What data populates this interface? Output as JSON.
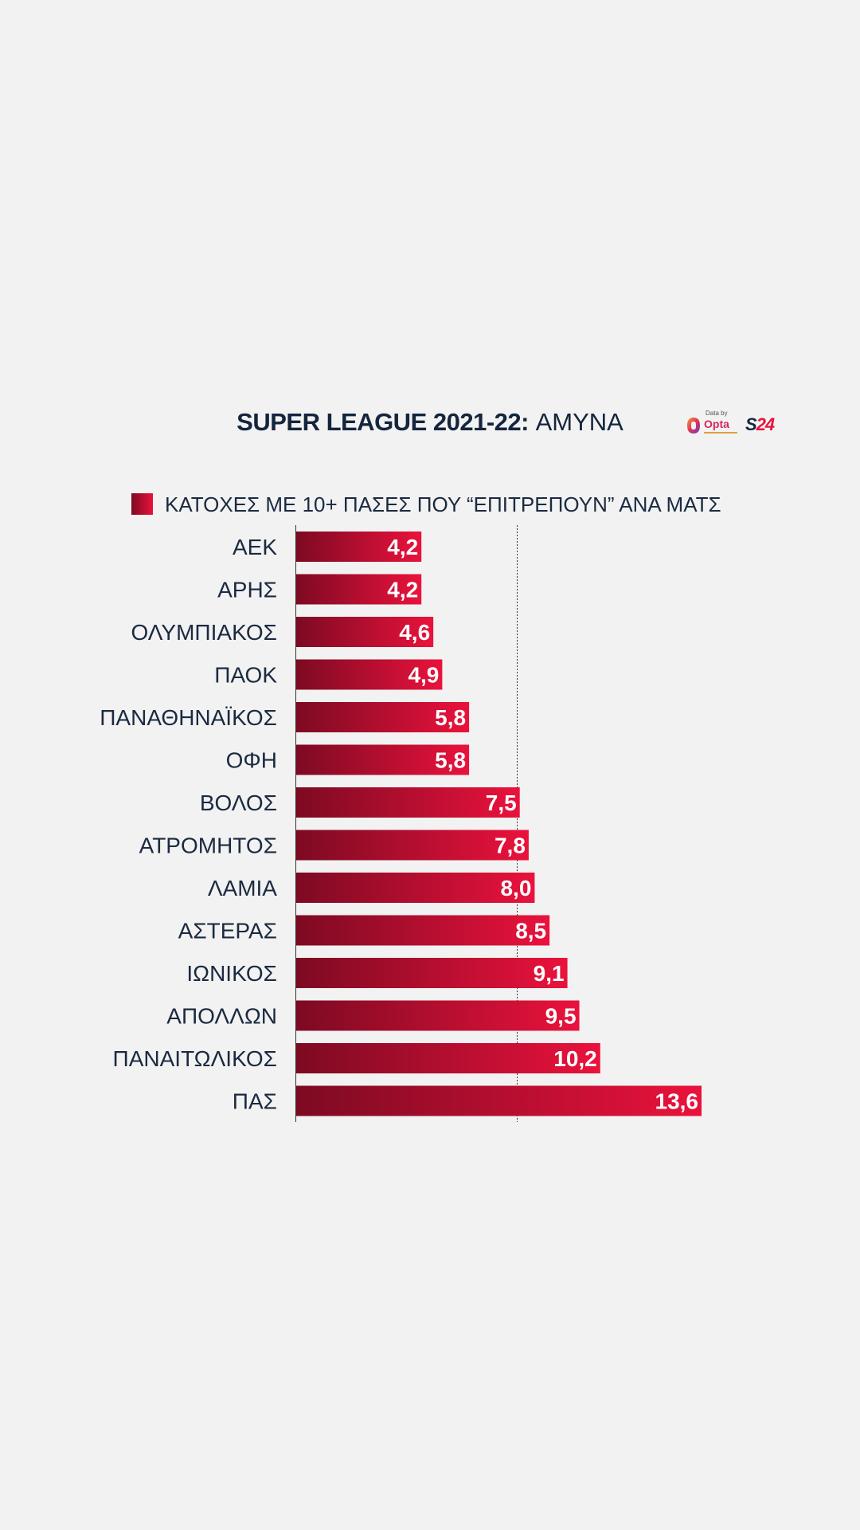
{
  "header": {
    "title_bold": "SUPER LEAGUE 2021-22:",
    "title_rest": "ΑΜΥΝΑ",
    "data_by": "Data by",
    "opta": "Opta",
    "brand_s": "S",
    "brand_24": "24"
  },
  "colors": {
    "bar_start": "#7d0a22",
    "bar_end": "#ea123c",
    "text": "#1b2a40",
    "value_text": "#ffffff"
  },
  "chart_data": {
    "type": "bar",
    "orientation": "horizontal",
    "legend": [
      "ΚΑΤΟΧΕΣ ΜΕ 10+ ΠΑΣΕΣ ΠΟΥ “ΕΠΙΤΡΕΠΟΥΝ” ΑΝΑ ΜΑΤΣ"
    ],
    "categories": [
      "ΑΕΚ",
      "ΑΡΗΣ",
      "ΟΛΥΜΠΙΑΚΟΣ",
      "ΠΑΟΚ",
      "ΠΑΝΑΘΗΝΑΪΚΟΣ",
      "ΟΦΗ",
      "ΒΟΛΟΣ",
      "ΑΤΡΟΜΗΤΟΣ",
      "ΛΑΜΙΑ",
      "ΑΣΤΕΡΑΣ",
      "ΙΩΝΙΚΟΣ",
      "ΑΠΟΛΛΩΝ",
      "ΠΑΝΑΙΤΩΛΙΚΟΣ",
      "ΠΑΣ"
    ],
    "values": [
      4.2,
      4.2,
      4.6,
      4.9,
      5.8,
      5.8,
      7.5,
      7.8,
      8.0,
      8.5,
      9.1,
      9.5,
      10.2,
      13.6
    ],
    "value_labels": [
      "4,2",
      "4,2",
      "4,6",
      "4,9",
      "5,8",
      "5,8",
      "7,5",
      "7,8",
      "8,0",
      "8,5",
      "9,1",
      "9,5",
      "10,2",
      "13,6"
    ],
    "reference_line": 7.4,
    "xlim": [
      0,
      13.6
    ],
    "grid": false
  }
}
